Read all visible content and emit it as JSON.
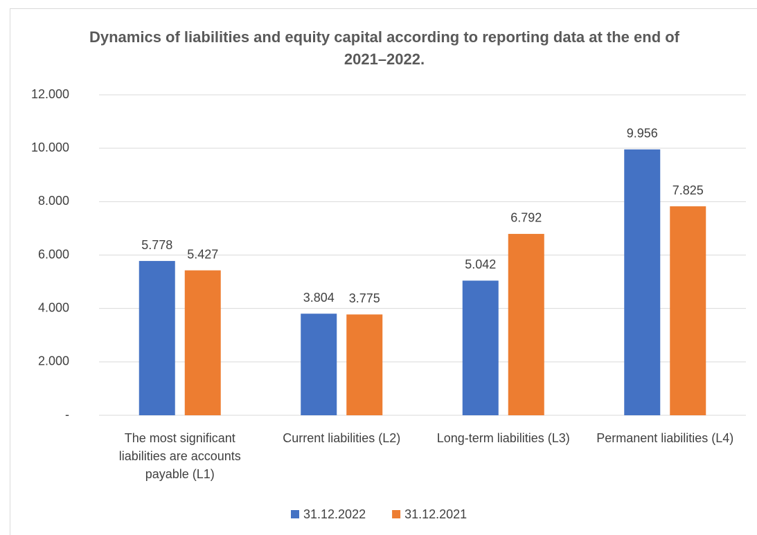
{
  "chart_data": {
    "type": "bar",
    "title": "Dynamics of liabilities and equity capital according to reporting data at the end of 2021–2022.",
    "categories": [
      "The most significant liabilities are accounts payable (L1)",
      "Current liabilities (L2)",
      "Long-term liabilities (L3)",
      "Permanent liabilities (L4)"
    ],
    "series": [
      {
        "name": "31.12.2022",
        "color": "#4472c4",
        "values": [
          5778,
          3804,
          5042,
          9956
        ],
        "value_labels": [
          "5.778",
          "3.804",
          "5.042",
          "9.956"
        ]
      },
      {
        "name": "31.12.2021",
        "color": "#ed7d31",
        "values": [
          5427,
          3775,
          6792,
          7825
        ],
        "value_labels": [
          "5.427",
          "3.775",
          "6.792",
          "7.825"
        ]
      }
    ],
    "ylim": [
      0,
      12000
    ],
    "yticks": [
      {
        "value": 0,
        "label": "-"
      },
      {
        "value": 2000,
        "label": "2.000"
      },
      {
        "value": 4000,
        "label": "4.000"
      },
      {
        "value": 6000,
        "label": "6.000"
      },
      {
        "value": 8000,
        "label": "8.000"
      },
      {
        "value": 10000,
        "label": "10.000"
      },
      {
        "value": 12000,
        "label": "12.000"
      }
    ],
    "grid": true,
    "legend": "bottom"
  }
}
